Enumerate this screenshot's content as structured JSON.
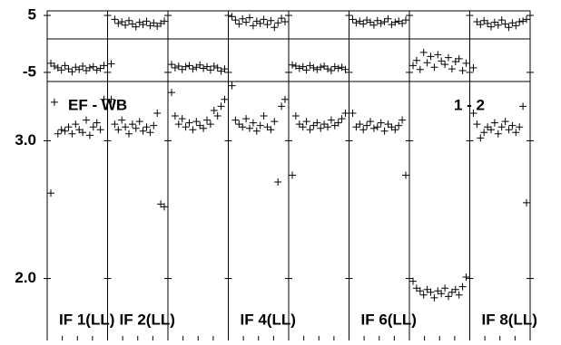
{
  "chart_data": {
    "type": "scatter",
    "annotations": [
      "EF - WB",
      "1 - 2"
    ],
    "phase_ylim": [
      -6.6,
      5.8
    ],
    "phase_yticks": [
      5,
      -5
    ],
    "amp_ylim": [
      1.55,
      3.43
    ],
    "amp_yticks": [
      {
        "value": 3,
        "label": "3.0"
      },
      {
        "value": 2,
        "label": "2.0"
      }
    ],
    "color": "#000000",
    "panels": [
      {
        "label": "IF 1(LL)",
        "phase": [
          -3.4,
          -3.9,
          -4.2,
          -4.6,
          -3.8,
          -4.4,
          -4.9,
          -4.1,
          -4.5,
          -3.9,
          -4.7,
          -4.2,
          -4.0,
          -4.6,
          -4.3,
          -3.8
        ],
        "amp": [
          2.62,
          3.28,
          3.05,
          3.08,
          3.07,
          3.1,
          3.05,
          3.12,
          3.08,
          3.06,
          3.15,
          3.04,
          3.1,
          3.13,
          3.08,
          3.3
        ]
      },
      {
        "label": "IF 2(LL)",
        "phase": [
          -3.5,
          4.3,
          3.6,
          3.9,
          3.3,
          4.1,
          3.5,
          3.0,
          3.8,
          3.4,
          4.0,
          3.2,
          3.7,
          3.1,
          3.6,
          4.0
        ],
        "amp": [
          3.3,
          3.12,
          3.08,
          3.15,
          3.1,
          3.05,
          3.12,
          3.09,
          3.14,
          3.07,
          3.1,
          3.06,
          3.11,
          3.2,
          2.54,
          2.52
        ]
      },
      {
        "label": null,
        "phase": [
          -3.6,
          -4.2,
          -3.9,
          -4.5,
          -4.0,
          -3.8,
          -4.4,
          -4.1,
          -3.7,
          -4.3,
          -4.0,
          -4.6,
          -3.9,
          -4.2,
          -4.8,
          -4.4
        ],
        "amp": [
          3.35,
          3.18,
          3.12,
          3.16,
          3.1,
          3.13,
          3.08,
          3.14,
          3.11,
          3.09,
          3.15,
          3.12,
          3.22,
          3.18,
          3.25,
          3.3
        ]
      },
      {
        "label": "IF 4(LL)",
        "phase": [
          4.8,
          4.2,
          3.5,
          4.4,
          3.8,
          4.6,
          3.2,
          4.0,
          3.6,
          4.3,
          3.4,
          4.1,
          2.9,
          3.7,
          4.5,
          3.9
        ],
        "amp": [
          3.4,
          3.15,
          3.12,
          3.1,
          3.16,
          3.09,
          3.13,
          3.07,
          3.11,
          3.18,
          3.1,
          3.08,
          3.14,
          2.7,
          3.25,
          3.3
        ]
      },
      {
        "label": null,
        "phase": [
          -3.7,
          -3.9,
          -4.3,
          -4.0,
          -4.6,
          -3.8,
          -4.2,
          -4.5,
          -4.1,
          -3.9,
          -4.4,
          -4.7,
          -4.0,
          -4.3,
          -4.1,
          -4.5
        ],
        "amp": [
          2.75,
          3.18,
          3.12,
          3.1,
          3.14,
          3.08,
          3.11,
          3.13,
          3.09,
          3.12,
          3.1,
          3.15,
          3.11,
          3.13,
          3.16,
          3.2
        ]
      },
      {
        "label": "IF 6(LL)",
        "phase": [
          4.3,
          3.7,
          4.0,
          3.5,
          4.2,
          3.8,
          3.3,
          4.1,
          3.6,
          3.9,
          4.4,
          3.4,
          3.8,
          4.0,
          3.6,
          4.2
        ],
        "amp": [
          3.2,
          3.1,
          3.12,
          3.08,
          3.11,
          3.14,
          3.09,
          3.1,
          3.13,
          3.07,
          3.12,
          3.1,
          3.08,
          3.11,
          3.15,
          2.75
        ]
      },
      {
        "label": null,
        "phase": [
          -3.8,
          -2.9,
          -4.5,
          -1.5,
          -3.3,
          -2.2,
          -4.1,
          -1.9,
          -3.0,
          -3.6,
          -2.4,
          -4.4,
          -3.1,
          -2.6,
          -4.7,
          -3.4
        ],
        "amp": [
          1.98,
          1.93,
          1.91,
          1.88,
          1.92,
          1.9,
          1.86,
          1.91,
          1.89,
          1.93,
          1.87,
          1.9,
          1.92,
          1.88,
          1.94,
          2.01
        ]
      },
      {
        "label": "IF 8(LL)",
        "phase": [
          -4.2,
          3.9,
          3.4,
          4.1,
          3.6,
          3.0,
          3.8,
          3.3,
          4.2,
          3.5,
          2.9,
          3.7,
          3.2,
          3.9,
          4.0,
          4.3
        ],
        "amp": [
          3.2,
          3.12,
          3.02,
          3.06,
          3.1,
          3.08,
          3.13,
          3.05,
          3.1,
          3.14,
          3.08,
          3.11,
          3.06,
          3.1,
          3.25,
          2.55
        ]
      }
    ]
  }
}
